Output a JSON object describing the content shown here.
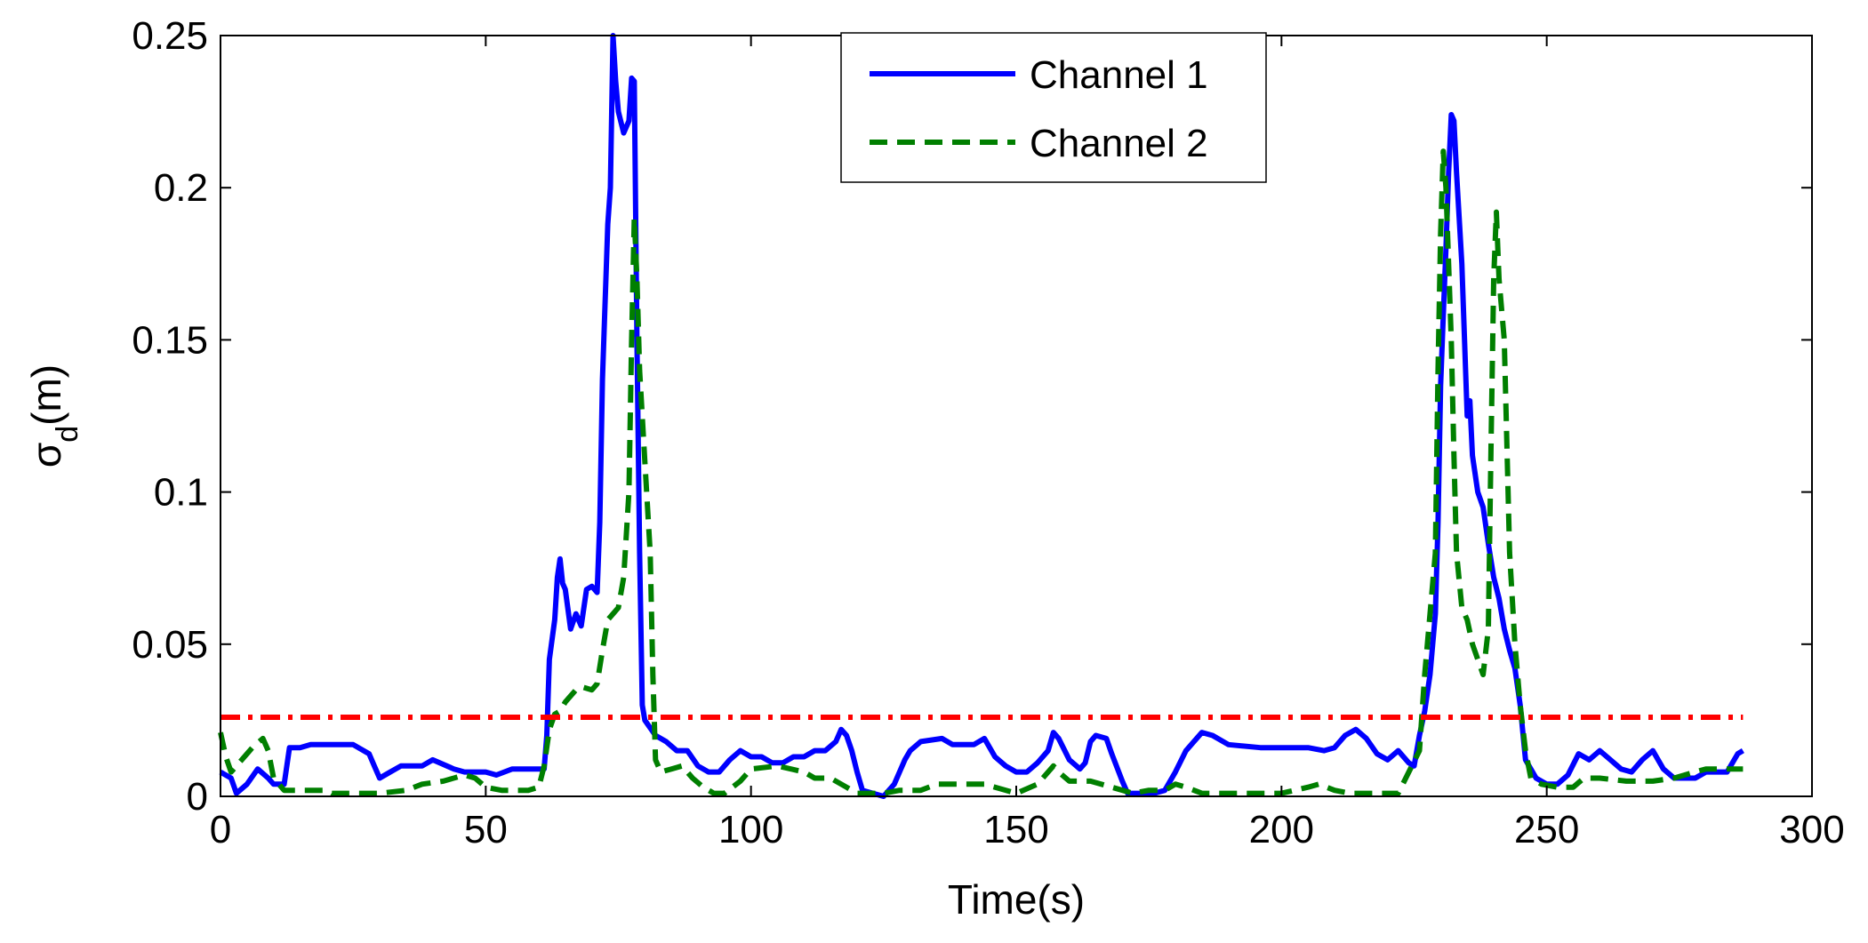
{
  "chart_data": {
    "type": "line",
    "title": "",
    "xlabel": "Time(s)",
    "ylabel": "σ",
    "ylabel_subscript": "d",
    "ylabel_suffix": "(m)",
    "xlim": [
      0,
      300
    ],
    "ylim": [
      0,
      0.25
    ],
    "x_ticks": [
      0,
      50,
      100,
      150,
      200,
      250,
      300
    ],
    "x_tick_labels": [
      "0",
      "50",
      "100",
      "150",
      "200",
      "250",
      "300"
    ],
    "y_ticks": [
      0,
      0.05,
      0.1,
      0.15,
      0.2,
      0.25
    ],
    "y_tick_labels": [
      "0",
      "0.05",
      "0.1",
      "0.15",
      "0.2",
      "0.25"
    ],
    "grid": false,
    "legend_position": "top-center",
    "series": [
      {
        "name": "Channel 1",
        "color": "#0000ff",
        "style": "solid",
        "points": [
          [
            0,
            0.008
          ],
          [
            2,
            0.006
          ],
          [
            3,
            0.001
          ],
          [
            5,
            0.004
          ],
          [
            7,
            0.009
          ],
          [
            9,
            0.006
          ],
          [
            10,
            0.004
          ],
          [
            12,
            0.004
          ],
          [
            13,
            0.016
          ],
          [
            15,
            0.016
          ],
          [
            17,
            0.017
          ],
          [
            25,
            0.017
          ],
          [
            28,
            0.014
          ],
          [
            29,
            0.01
          ],
          [
            30,
            0.006
          ],
          [
            32,
            0.008
          ],
          [
            34,
            0.01
          ],
          [
            38,
            0.01
          ],
          [
            40,
            0.012
          ],
          [
            44,
            0.009
          ],
          [
            46,
            0.008
          ],
          [
            50,
            0.008
          ],
          [
            52,
            0.007
          ],
          [
            55,
            0.009
          ],
          [
            58,
            0.009
          ],
          [
            61,
            0.009
          ],
          [
            61.5,
            0.02
          ],
          [
            62,
            0.045
          ],
          [
            63,
            0.058
          ],
          [
            63.5,
            0.072
          ],
          [
            64,
            0.078
          ],
          [
            64.5,
            0.07
          ],
          [
            65,
            0.068
          ],
          [
            66,
            0.055
          ],
          [
            67,
            0.06
          ],
          [
            68,
            0.056
          ],
          [
            69,
            0.068
          ],
          [
            70,
            0.069
          ],
          [
            71,
            0.067
          ],
          [
            71.5,
            0.09
          ],
          [
            72,
            0.137
          ],
          [
            73,
            0.188
          ],
          [
            73.5,
            0.2
          ],
          [
            74,
            0.25
          ],
          [
            74.5,
            0.235
          ],
          [
            75,
            0.225
          ],
          [
            76,
            0.218
          ],
          [
            77,
            0.222
          ],
          [
            77.5,
            0.236
          ],
          [
            78,
            0.235
          ],
          [
            78.5,
            0.15
          ],
          [
            79,
            0.08
          ],
          [
            79.5,
            0.03
          ],
          [
            80,
            0.025
          ],
          [
            82,
            0.02
          ],
          [
            84,
            0.018
          ],
          [
            86,
            0.015
          ],
          [
            88,
            0.015
          ],
          [
            90,
            0.01
          ],
          [
            92,
            0.008
          ],
          [
            94,
            0.008
          ],
          [
            96,
            0.012
          ],
          [
            98,
            0.015
          ],
          [
            100,
            0.013
          ],
          [
            102,
            0.013
          ],
          [
            104,
            0.011
          ],
          [
            106,
            0.011
          ],
          [
            108,
            0.013
          ],
          [
            110,
            0.013
          ],
          [
            112,
            0.015
          ],
          [
            114,
            0.015
          ],
          [
            116,
            0.018
          ],
          [
            117,
            0.022
          ],
          [
            118,
            0.02
          ],
          [
            119,
            0.015
          ],
          [
            120,
            0.008
          ],
          [
            121,
            0.002
          ],
          [
            123,
            0.001
          ],
          [
            125,
            0.0
          ],
          [
            127,
            0.004
          ],
          [
            129,
            0.012
          ],
          [
            130,
            0.015
          ],
          [
            132,
            0.018
          ],
          [
            136,
            0.019
          ],
          [
            138,
            0.017
          ],
          [
            142,
            0.017
          ],
          [
            144,
            0.019
          ],
          [
            146,
            0.013
          ],
          [
            148,
            0.01
          ],
          [
            150,
            0.008
          ],
          [
            152,
            0.008
          ],
          [
            154,
            0.011
          ],
          [
            156,
            0.015
          ],
          [
            157,
            0.021
          ],
          [
            158,
            0.019
          ],
          [
            160,
            0.012
          ],
          [
            162,
            0.009
          ],
          [
            163,
            0.011
          ],
          [
            164,
            0.018
          ],
          [
            165,
            0.02
          ],
          [
            167,
            0.019
          ],
          [
            168,
            0.014
          ],
          [
            170,
            0.005
          ],
          [
            171,
            0.001
          ],
          [
            172,
            0.001
          ],
          [
            174,
            0.001
          ],
          [
            176,
            0.001
          ],
          [
            178,
            0.002
          ],
          [
            180,
            0.008
          ],
          [
            182,
            0.015
          ],
          [
            184,
            0.019
          ],
          [
            185,
            0.021
          ],
          [
            187,
            0.02
          ],
          [
            190,
            0.017
          ],
          [
            196,
            0.016
          ],
          [
            200,
            0.016
          ],
          [
            205,
            0.016
          ],
          [
            208,
            0.015
          ],
          [
            210,
            0.016
          ],
          [
            212,
            0.02
          ],
          [
            214,
            0.022
          ],
          [
            216,
            0.019
          ],
          [
            218,
            0.014
          ],
          [
            220,
            0.012
          ],
          [
            222,
            0.015
          ],
          [
            224,
            0.011
          ],
          [
            225,
            0.01
          ],
          [
            226,
            0.02
          ],
          [
            227,
            0.028
          ],
          [
            228,
            0.04
          ],
          [
            229,
            0.06
          ],
          [
            229.5,
            0.09
          ],
          [
            230,
            0.135
          ],
          [
            230.5,
            0.158
          ],
          [
            231,
            0.18
          ],
          [
            231.5,
            0.205
          ],
          [
            232,
            0.224
          ],
          [
            232.5,
            0.222
          ],
          [
            233,
            0.205
          ],
          [
            234,
            0.175
          ],
          [
            234.5,
            0.15
          ],
          [
            235,
            0.125
          ],
          [
            235.5,
            0.13
          ],
          [
            236,
            0.112
          ],
          [
            237,
            0.1
          ],
          [
            238,
            0.095
          ],
          [
            239,
            0.083
          ],
          [
            240,
            0.072
          ],
          [
            241,
            0.065
          ],
          [
            242,
            0.055
          ],
          [
            243,
            0.048
          ],
          [
            244,
            0.042
          ],
          [
            245,
            0.03
          ],
          [
            246,
            0.012
          ],
          [
            248,
            0.006
          ],
          [
            250,
            0.004
          ],
          [
            252,
            0.004
          ],
          [
            254,
            0.007
          ],
          [
            256,
            0.014
          ],
          [
            258,
            0.012
          ],
          [
            260,
            0.015
          ],
          [
            262,
            0.012
          ],
          [
            264,
            0.009
          ],
          [
            266,
            0.008
          ],
          [
            268,
            0.012
          ],
          [
            270,
            0.015
          ],
          [
            272,
            0.009
          ],
          [
            274,
            0.006
          ],
          [
            276,
            0.006
          ],
          [
            278,
            0.006
          ],
          [
            280,
            0.008
          ],
          [
            282,
            0.008
          ],
          [
            284,
            0.008
          ],
          [
            286,
            0.014
          ],
          [
            287,
            0.015
          ]
        ]
      },
      {
        "name": "Channel 2",
        "color": "#007f00",
        "style": "dashed",
        "points": [
          [
            0,
            0.021
          ],
          [
            1,
            0.013
          ],
          [
            2,
            0.008
          ],
          [
            3,
            0.01
          ],
          [
            5,
            0.014
          ],
          [
            6,
            0.016
          ],
          [
            8,
            0.019
          ],
          [
            9,
            0.015
          ],
          [
            10,
            0.006
          ],
          [
            11,
            0.004
          ],
          [
            12,
            0.002
          ],
          [
            15,
            0.002
          ],
          [
            20,
            0.002
          ],
          [
            21,
            0.001
          ],
          [
            25,
            0.001
          ],
          [
            30,
            0.001
          ],
          [
            35,
            0.002
          ],
          [
            38,
            0.004
          ],
          [
            42,
            0.005
          ],
          [
            46,
            0.007
          ],
          [
            48,
            0.006
          ],
          [
            50,
            0.003
          ],
          [
            53,
            0.002
          ],
          [
            58,
            0.002
          ],
          [
            60,
            0.003
          ],
          [
            61,
            0.01
          ],
          [
            62,
            0.022
          ],
          [
            63,
            0.027
          ],
          [
            64,
            0.028
          ],
          [
            65,
            0.031
          ],
          [
            66,
            0.033
          ],
          [
            67,
            0.035
          ],
          [
            68,
            0.036
          ],
          [
            70,
            0.035
          ],
          [
            71,
            0.037
          ],
          [
            72,
            0.048
          ],
          [
            73,
            0.058
          ],
          [
            74,
            0.06
          ],
          [
            75,
            0.062
          ],
          [
            76,
            0.072
          ],
          [
            77,
            0.1
          ],
          [
            77.5,
            0.15
          ],
          [
            78,
            0.19
          ],
          [
            78.5,
            0.17
          ],
          [
            79,
            0.14
          ],
          [
            80,
            0.11
          ],
          [
            81,
            0.08
          ],
          [
            81.5,
            0.04
          ],
          [
            82,
            0.012
          ],
          [
            83,
            0.008
          ],
          [
            85,
            0.009
          ],
          [
            87,
            0.01
          ],
          [
            89,
            0.006
          ],
          [
            91,
            0.003
          ],
          [
            93,
            0.001
          ],
          [
            95,
            0.001
          ],
          [
            98,
            0.005
          ],
          [
            100,
            0.009
          ],
          [
            105,
            0.01
          ],
          [
            110,
            0.008
          ],
          [
            112,
            0.006
          ],
          [
            115,
            0.006
          ],
          [
            118,
            0.003
          ],
          [
            120,
            0.001
          ],
          [
            125,
            0.001
          ],
          [
            128,
            0.002
          ],
          [
            132,
            0.002
          ],
          [
            135,
            0.004
          ],
          [
            140,
            0.004
          ],
          [
            144,
            0.004
          ],
          [
            146,
            0.003
          ],
          [
            150,
            0.001
          ],
          [
            154,
            0.004
          ],
          [
            157,
            0.01
          ],
          [
            158,
            0.008
          ],
          [
            160,
            0.005
          ],
          [
            164,
            0.005
          ],
          [
            168,
            0.003
          ],
          [
            172,
            0.001
          ],
          [
            175,
            0.002
          ],
          [
            178,
            0.002
          ],
          [
            180,
            0.004
          ],
          [
            182,
            0.003
          ],
          [
            185,
            0.001
          ],
          [
            190,
            0.001
          ],
          [
            195,
            0.001
          ],
          [
            200,
            0.001
          ],
          [
            205,
            0.003
          ],
          [
            207,
            0.004
          ],
          [
            210,
            0.002
          ],
          [
            213,
            0.001
          ],
          [
            218,
            0.001
          ],
          [
            222,
            0.001
          ],
          [
            226,
            0.015
          ],
          [
            227,
            0.04
          ],
          [
            228,
            0.06
          ],
          [
            229,
            0.08
          ],
          [
            229.5,
            0.14
          ],
          [
            230,
            0.185
          ],
          [
            230.5,
            0.212
          ],
          [
            231,
            0.2
          ],
          [
            231.5,
            0.175
          ],
          [
            232,
            0.15
          ],
          [
            232.5,
            0.112
          ],
          [
            233,
            0.08
          ],
          [
            234,
            0.062
          ],
          [
            235,
            0.058
          ],
          [
            236,
            0.05
          ],
          [
            237,
            0.045
          ],
          [
            238,
            0.04
          ],
          [
            239,
            0.055
          ],
          [
            239.5,
            0.115
          ],
          [
            240,
            0.17
          ],
          [
            240.5,
            0.192
          ],
          [
            241,
            0.17
          ],
          [
            242,
            0.15
          ],
          [
            243,
            0.08
          ],
          [
            244,
            0.05
          ],
          [
            245,
            0.03
          ],
          [
            246,
            0.015
          ],
          [
            247,
            0.006
          ],
          [
            249,
            0.004
          ],
          [
            252,
            0.003
          ],
          [
            255,
            0.003
          ],
          [
            257,
            0.006
          ],
          [
            260,
            0.006
          ],
          [
            265,
            0.005
          ],
          [
            270,
            0.005
          ],
          [
            274,
            0.006
          ],
          [
            276,
            0.007
          ],
          [
            278,
            0.008
          ],
          [
            280,
            0.009
          ],
          [
            287,
            0.009
          ]
        ]
      },
      {
        "name": "",
        "color": "#ff0000",
        "style": "dashdot",
        "points": [
          [
            0,
            0.026
          ],
          [
            287,
            0.026
          ]
        ]
      }
    ],
    "legend": [
      {
        "label": "Channel 1",
        "color": "#0000ff",
        "style": "solid"
      },
      {
        "label": "Channel 2",
        "color": "#007f00",
        "style": "dashed"
      }
    ]
  }
}
